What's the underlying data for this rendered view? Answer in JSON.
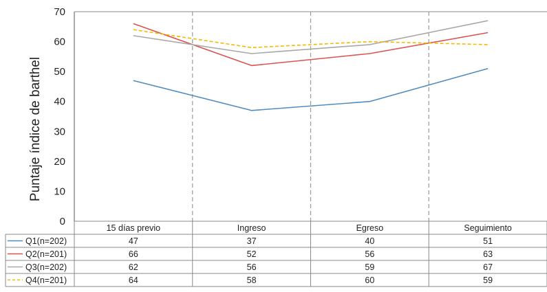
{
  "chart_data": {
    "type": "line",
    "title": "",
    "xlabel": "",
    "ylabel": "Puntaje índice de barthel",
    "ylim": [
      0,
      70
    ],
    "yticks": [
      0,
      10,
      20,
      30,
      40,
      50,
      60,
      70
    ],
    "categories": [
      "15 días previo",
      "Ingreso",
      "Egreso",
      "Seguimiento"
    ],
    "grid": "vertical dashed separators between categories",
    "legend": "data table below plot",
    "series": [
      {
        "name": "Q1(n=202)",
        "color": "#4f8bbf",
        "dashed": false,
        "values": [
          47,
          37,
          40,
          51
        ]
      },
      {
        "name": "Q2(n=201)",
        "color": "#d9534f",
        "dashed": false,
        "values": [
          66,
          52,
          56,
          63
        ]
      },
      {
        "name": "Q3(n=202)",
        "color": "#a8a8a8",
        "dashed": false,
        "values": [
          62,
          56,
          59,
          67
        ]
      },
      {
        "name": "Q4(n=201)",
        "color": "#f5b800",
        "dashed": true,
        "values": [
          64,
          58,
          60,
          59
        ]
      }
    ]
  }
}
